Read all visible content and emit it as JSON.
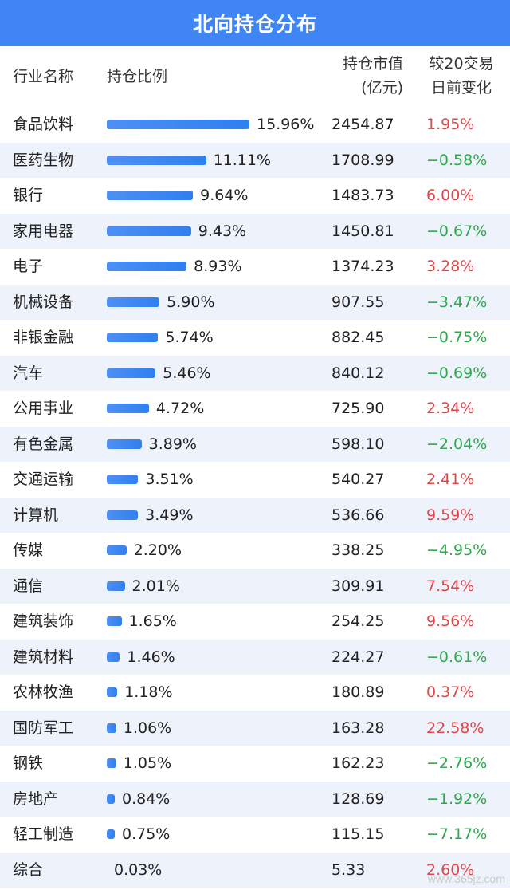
{
  "title": "北向持仓分布",
  "chart_data": {
    "type": "table",
    "title": "北向持仓分布",
    "columns": [
      "行业名称",
      "持仓比例",
      "持仓市值\n(亿元)",
      "较20交易\n日前变化"
    ],
    "rows": [
      {
        "name": "食品饮料",
        "pct": 15.96,
        "pct_label": "15.96%",
        "value": "2454.87",
        "change": 1.95,
        "change_label": "1.95%"
      },
      {
        "name": "医药生物",
        "pct": 11.11,
        "pct_label": "11.11%",
        "value": "1708.99",
        "change": -0.58,
        "change_label": "−0.58%"
      },
      {
        "name": "银行",
        "pct": 9.64,
        "pct_label": "9.64%",
        "value": "1483.73",
        "change": 6.0,
        "change_label": "6.00%"
      },
      {
        "name": "家用电器",
        "pct": 9.43,
        "pct_label": "9.43%",
        "value": "1450.81",
        "change": -0.67,
        "change_label": "−0.67%"
      },
      {
        "name": "电子",
        "pct": 8.93,
        "pct_label": "8.93%",
        "value": "1374.23",
        "change": 3.28,
        "change_label": "3.28%"
      },
      {
        "name": "机械设备",
        "pct": 5.9,
        "pct_label": "5.90%",
        "value": "907.55",
        "change": -3.47,
        "change_label": "−3.47%"
      },
      {
        "name": "非银金融",
        "pct": 5.74,
        "pct_label": "5.74%",
        "value": "882.45",
        "change": -0.75,
        "change_label": "−0.75%"
      },
      {
        "name": "汽车",
        "pct": 5.46,
        "pct_label": "5.46%",
        "value": "840.12",
        "change": -0.69,
        "change_label": "−0.69%"
      },
      {
        "name": "公用事业",
        "pct": 4.72,
        "pct_label": "4.72%",
        "value": "725.90",
        "change": 2.34,
        "change_label": "2.34%"
      },
      {
        "name": "有色金属",
        "pct": 3.89,
        "pct_label": "3.89%",
        "value": "598.10",
        "change": -2.04,
        "change_label": "−2.04%"
      },
      {
        "name": "交通运输",
        "pct": 3.51,
        "pct_label": "3.51%",
        "value": "540.27",
        "change": 2.41,
        "change_label": "2.41%"
      },
      {
        "name": "计算机",
        "pct": 3.49,
        "pct_label": "3.49%",
        "value": "536.66",
        "change": 9.59,
        "change_label": "9.59%"
      },
      {
        "name": "传媒",
        "pct": 2.2,
        "pct_label": "2.20%",
        "value": "338.25",
        "change": -4.95,
        "change_label": "−4.95%"
      },
      {
        "name": "通信",
        "pct": 2.01,
        "pct_label": "2.01%",
        "value": "309.91",
        "change": 7.54,
        "change_label": "7.54%"
      },
      {
        "name": "建筑装饰",
        "pct": 1.65,
        "pct_label": "1.65%",
        "value": "254.25",
        "change": 9.56,
        "change_label": "9.56%"
      },
      {
        "name": "建筑材料",
        "pct": 1.46,
        "pct_label": "1.46%",
        "value": "224.27",
        "change": -0.61,
        "change_label": "−0.61%"
      },
      {
        "name": "农林牧渔",
        "pct": 1.18,
        "pct_label": "1.18%",
        "value": "180.89",
        "change": 0.37,
        "change_label": "0.37%"
      },
      {
        "name": "国防军工",
        "pct": 1.06,
        "pct_label": "1.06%",
        "value": "163.28",
        "change": 22.58,
        "change_label": "22.58%"
      },
      {
        "name": "钢铁",
        "pct": 1.05,
        "pct_label": "1.05%",
        "value": "162.23",
        "change": -2.76,
        "change_label": "−2.76%"
      },
      {
        "name": "房地产",
        "pct": 0.84,
        "pct_label": "0.84%",
        "value": "128.69",
        "change": -1.92,
        "change_label": "−1.92%"
      },
      {
        "name": "轻工制造",
        "pct": 0.75,
        "pct_label": "0.75%",
        "value": "115.15",
        "change": -7.17,
        "change_label": "−7.17%"
      },
      {
        "name": "综合",
        "pct": 0.03,
        "pct_label": "0.03%",
        "value": "5.33",
        "change": 2.6,
        "change_label": "2.60%"
      }
    ]
  },
  "colors": {
    "header_bg": "#3f86f4",
    "bar": "#3584f2",
    "positive": "#e0464a",
    "negative": "#2fa84f",
    "alt_row": "#eef3fb"
  },
  "watermark": "www.365jz.com"
}
